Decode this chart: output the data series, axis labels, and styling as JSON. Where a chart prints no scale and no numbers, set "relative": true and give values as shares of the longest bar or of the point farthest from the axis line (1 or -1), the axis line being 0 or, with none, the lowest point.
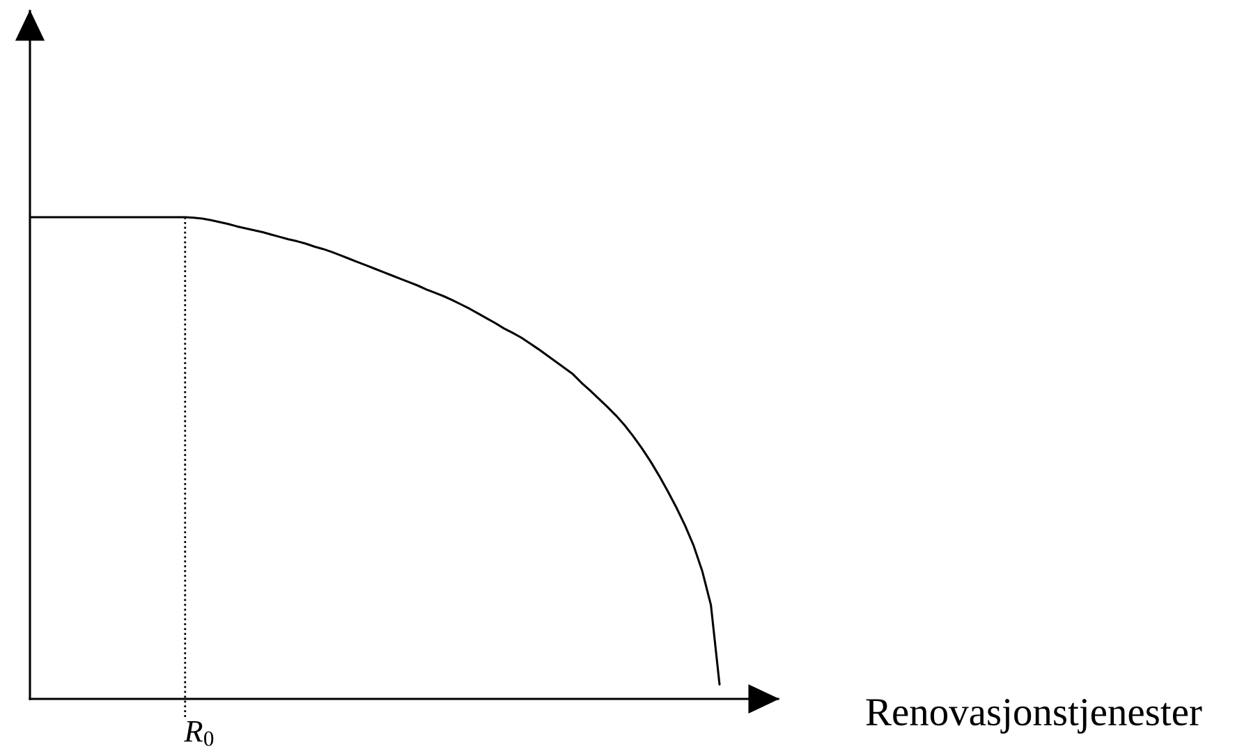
{
  "chart_data": {
    "type": "line",
    "xlabel": "Renovasjonstjenester",
    "relative": true,
    "categories": [
      null,
      null,
      null,
      null,
      null,
      null,
      null,
      null,
      null,
      null,
      null,
      null,
      null,
      null,
      null,
      null,
      null,
      null,
      null,
      null,
      null,
      null,
      null,
      null,
      null,
      null,
      null,
      null,
      null,
      null,
      null,
      null,
      null,
      null,
      null,
      null,
      null,
      null,
      null,
      null,
      null,
      null,
      null,
      null,
      null,
      null,
      null,
      null,
      null,
      null,
      null,
      null,
      null,
      null,
      null,
      null,
      null,
      null,
      null,
      null,
      null,
      null,
      null,
      null,
      null,
      null,
      null,
      null,
      null,
      null,
      null,
      null,
      null,
      null,
      null,
      null,
      null,
      null,
      null,
      null,
      null
    ],
    "values": [
      1,
      1,
      1,
      1,
      1,
      1,
      1,
      1,
      1,
      1,
      1,
      1,
      1,
      1,
      1,
      1,
      1,
      1,
      1,
      0.999,
      0.997,
      0.994,
      0.99,
      0.986,
      0.981,
      0.977,
      0.973,
      0.969,
      0.964,
      0.959,
      0.954,
      0.95,
      0.945,
      0.939,
      0.934,
      0.928,
      0.921,
      0.914,
      0.907,
      0.9,
      0.893,
      0.886,
      0.879,
      0.872,
      0.865,
      0.858,
      0.85,
      0.843,
      0.836,
      0.828,
      0.819,
      0.81,
      0.8,
      0.79,
      0.78,
      0.769,
      0.76,
      0.75,
      0.738,
      0.726,
      0.713,
      0.7,
      0.687,
      0.674,
      0.656,
      0.64,
      0.623,
      0.606,
      0.588,
      0.568,
      0.545,
      0.52,
      0.493,
      0.463,
      0.431,
      0.397,
      0.36,
      0.318,
      0.265,
      0.195,
      0.03
    ],
    "color": "#000000",
    "annotations": [
      "R$_{0}$"
    ]
  }
}
